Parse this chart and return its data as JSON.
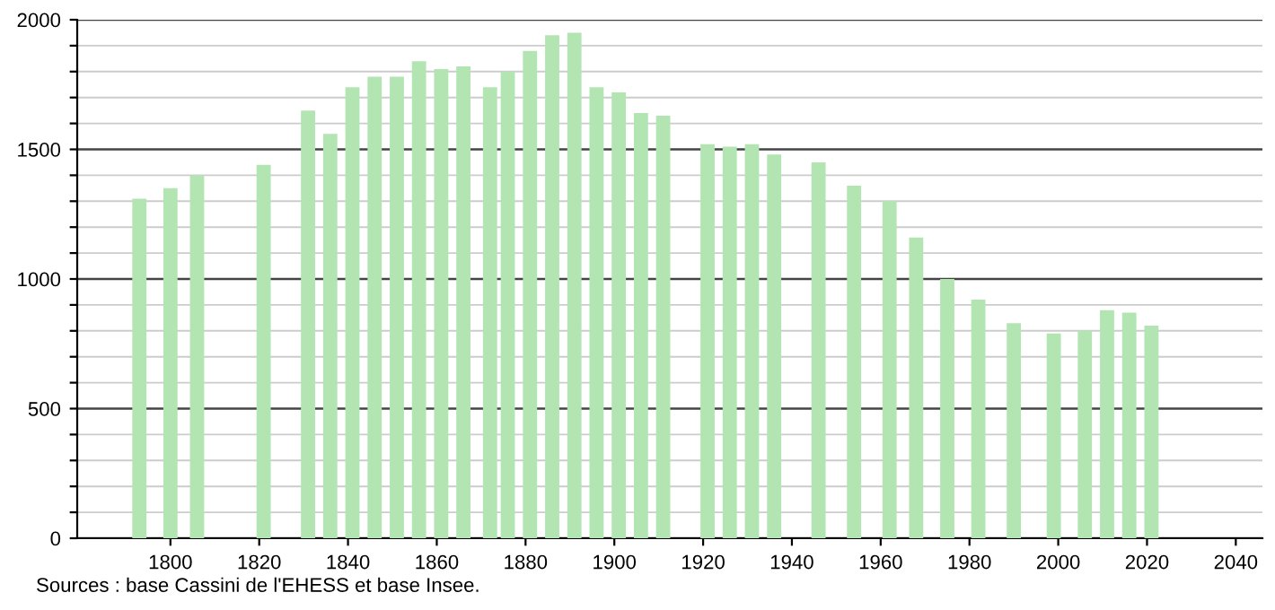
{
  "chart_data": {
    "type": "bar",
    "color": "#b3e5b3",
    "x": [
      1793,
      1800,
      1806,
      1821,
      1831,
      1836,
      1841,
      1846,
      1851,
      1856,
      1861,
      1866,
      1872,
      1876,
      1881,
      1886,
      1891,
      1896,
      1901,
      1906,
      1911,
      1921,
      1926,
      1931,
      1936,
      1946,
      1954,
      1962,
      1968,
      1975,
      1982,
      1990,
      1999,
      2006,
      2011,
      2016,
      2021
    ],
    "values": [
      1310,
      1350,
      1400,
      1440,
      1650,
      1560,
      1740,
      1780,
      1780,
      1840,
      1810,
      1820,
      1740,
      1800,
      1880,
      1940,
      1950,
      1740,
      1720,
      1640,
      1630,
      1520,
      1510,
      1520,
      1480,
      1450,
      1360,
      1300,
      1160,
      1000,
      920,
      830,
      790,
      800,
      880,
      870,
      820
    ],
    "xlim": [
      1779,
      2046
    ],
    "xticks": [
      1800,
      1820,
      1840,
      1860,
      1880,
      1900,
      1920,
      1940,
      1960,
      1980,
      2000,
      2020,
      2040
    ],
    "ylim": [
      0,
      2000
    ],
    "yticks": [
      0,
      {
        "value": 100,
        "label": null
      },
      {
        "value": 200,
        "label": null
      },
      {
        "value": 300,
        "label": null
      },
      {
        "value": 400,
        "label": null
      },
      500,
      {
        "value": 600,
        "label": null
      },
      {
        "value": 700,
        "label": null
      },
      {
        "value": 800,
        "label": null
      },
      {
        "value": 900,
        "label": null
      },
      1000,
      {
        "value": 1100,
        "label": null
      },
      {
        "value": 1200,
        "label": null
      },
      {
        "value": 1300,
        "label": null
      },
      {
        "value": 1400,
        "label": null
      },
      1500,
      {
        "value": 1600,
        "label": null
      },
      {
        "value": 1700,
        "label": null
      },
      {
        "value": 1800,
        "label": null
      },
      {
        "value": 1900,
        "label": null
      },
      2000
    ],
    "grid": "y",
    "annotations": [
      "Sources : base Cassini de l'EHESS et base Insee."
    ]
  }
}
